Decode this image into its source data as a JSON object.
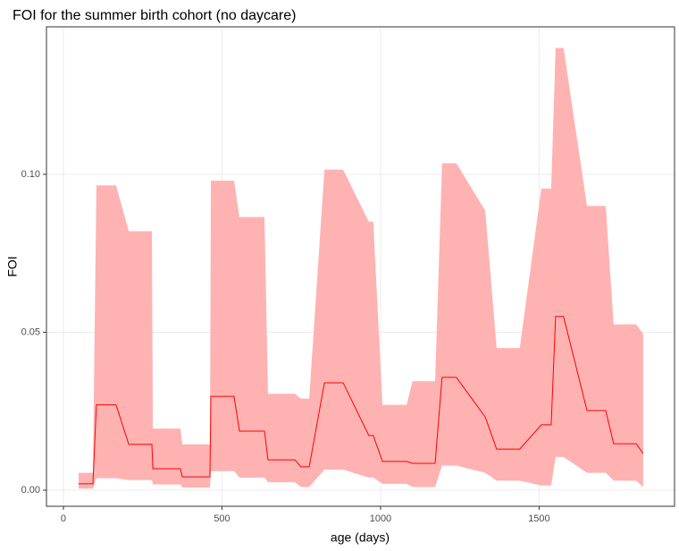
{
  "chart_data": {
    "type": "line",
    "title": "FOI for the summer birth cohort (no daycare)",
    "xlabel": "age (days)",
    "ylabel": "FOI",
    "x": [
      48,
      93,
      104,
      166,
      206,
      279,
      282,
      369,
      375,
      462,
      465,
      538,
      555,
      634,
      645,
      730,
      749,
      775,
      823,
      882,
      963,
      977,
      1006,
      1082,
      1101,
      1172,
      1194,
      1239,
      1330,
      1366,
      1439,
      1507,
      1538,
      1552,
      1577,
      1651,
      1710,
      1735,
      1806,
      1828
    ],
    "values": [
      0.002,
      0.002,
      0.027,
      0.027,
      0.0145,
      0.0145,
      0.0068,
      0.0068,
      0.0042,
      0.0042,
      0.0297,
      0.0297,
      0.0187,
      0.0187,
      0.0096,
      0.0096,
      0.0074,
      0.0074,
      0.034,
      0.034,
      0.0173,
      0.0173,
      0.0091,
      0.0091,
      0.0085,
      0.0085,
      0.0357,
      0.0357,
      0.0232,
      0.013,
      0.013,
      0.0207,
      0.0207,
      0.055,
      0.055,
      0.0252,
      0.0252,
      0.0147,
      0.0147,
      0.0116
    ],
    "lower": [
      0.0005,
      0.0005,
      0.0038,
      0.0038,
      0.0032,
      0.0032,
      0.0018,
      0.0018,
      0.0008,
      0.0008,
      0.006,
      0.006,
      0.004,
      0.004,
      0.0025,
      0.0025,
      0.001,
      0.001,
      0.0065,
      0.0065,
      0.004,
      0.004,
      0.002,
      0.002,
      0.001,
      0.001,
      0.0078,
      0.0078,
      0.0055,
      0.003,
      0.003,
      0.0015,
      0.0015,
      0.0105,
      0.0105,
      0.0055,
      0.0055,
      0.003,
      0.003,
      0.001
    ],
    "upper": [
      0.0055,
      0.0055,
      0.0965,
      0.0965,
      0.082,
      0.082,
      0.0195,
      0.0195,
      0.0145,
      0.0145,
      0.098,
      0.098,
      0.0865,
      0.0865,
      0.0305,
      0.0305,
      0.029,
      0.029,
      0.1015,
      0.1015,
      0.085,
      0.085,
      0.027,
      0.027,
      0.0345,
      0.0345,
      0.1035,
      0.1035,
      0.0885,
      0.045,
      0.045,
      0.0955,
      0.0955,
      0.14,
      0.14,
      0.09,
      0.09,
      0.0525,
      0.0525,
      0.0495
    ],
    "color": "#ff0000",
    "band_color": "#ffb2b2",
    "xlim": [
      -53.5,
      1927
    ],
    "ylim": [
      -0.0051,
      0.1467
    ],
    "xticks": [
      0,
      500,
      1000,
      1500
    ],
    "yticks": [
      {
        "value": 0,
        "label": "0.00"
      },
      {
        "value": 0.05,
        "label": "0.05"
      },
      {
        "value": 0.1,
        "label": "0.10"
      }
    ],
    "grid": true
  }
}
